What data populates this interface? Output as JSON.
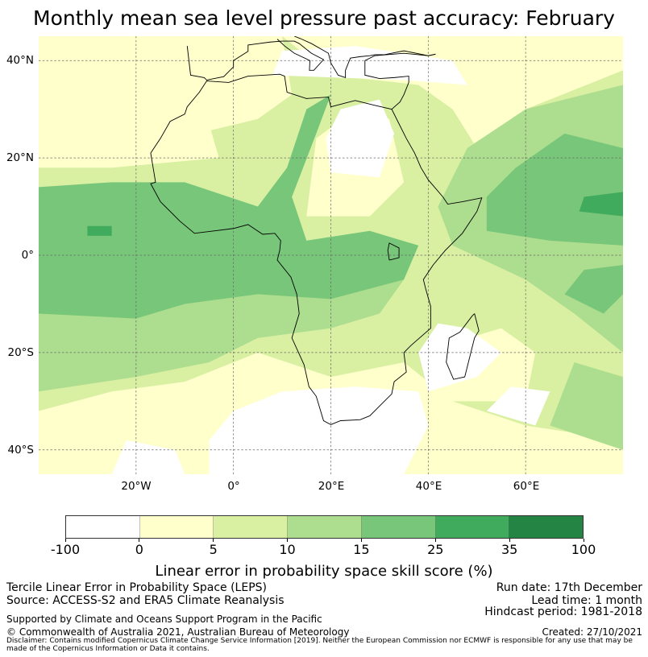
{
  "title": "Monthly mean sea level pressure past accuracy: February",
  "map": {
    "lat_labels": [
      "40°N",
      "20°N",
      "0°",
      "20°S",
      "40°S"
    ],
    "lon_labels": [
      "20°W",
      "0°",
      "20°E",
      "40°E",
      "60°E"
    ]
  },
  "colorbar": {
    "ticks": [
      "-100",
      "0",
      "5",
      "10",
      "15",
      "25",
      "35",
      "100"
    ],
    "colors": [
      "#ffffff",
      "#ffffcc",
      "#d9f0a3",
      "#addd8e",
      "#78c679",
      "#41ab5d",
      "#238443"
    ],
    "label": "Linear error in probability space skill score (%)"
  },
  "footer": {
    "method": "Tercile Linear Error in Probability Space (LEPS)",
    "source": "Source: ACCESS-S2 and ERA5 Climate Reanalysis",
    "support": "Supported by Climate and Oceans Support Program in the Pacific",
    "copyright": "© Commonwealth of Australia 2021, Australian Bureau of Meteorology",
    "run_date": "Run date: 17th December",
    "lead_time": "Lead time: 1 month",
    "hindcast": "Hindcast period: 1981-2018",
    "created": "Created: 27/10/2021",
    "disclaimer": "Disclaimer: Contains modified Copernicus Climate Change Service Information [2019]. Neither the European Commission nor ECMWF is responsible for any use that may be made of the Copernicus Information or Data it contains."
  }
}
